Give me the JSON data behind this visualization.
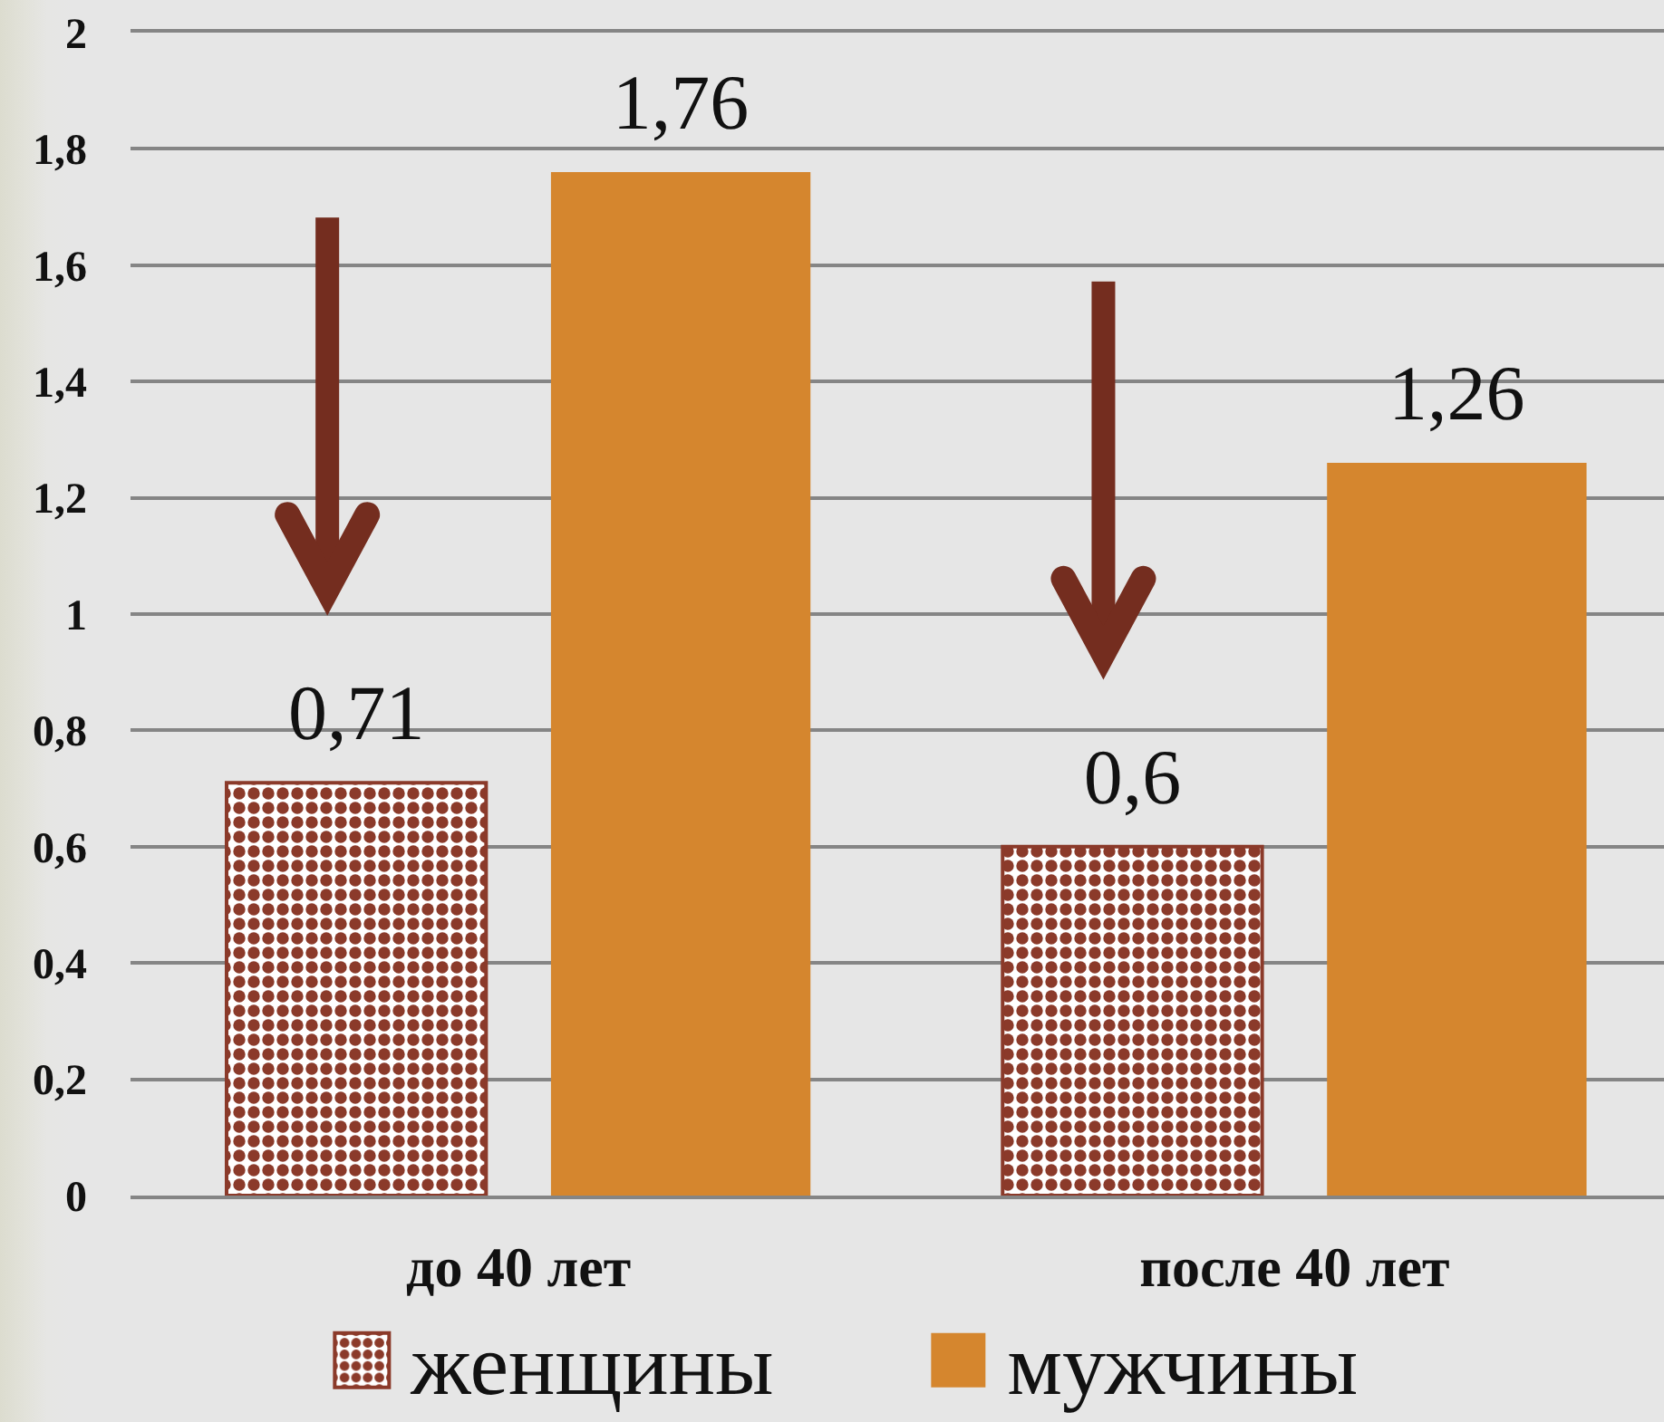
{
  "chart_data": {
    "type": "bar",
    "categories": [
      "до 40 лет",
      "после 40 лет"
    ],
    "series": [
      {
        "name": "женщины",
        "color": "#8b3a2a",
        "values": [
          0.71,
          0.6
        ],
        "value_labels": [
          "0,71",
          "0,6"
        ]
      },
      {
        "name": "мужчины",
        "color": "#d5862e",
        "values": [
          1.76,
          1.26
        ],
        "value_labels": [
          "1,76",
          "1,26"
        ]
      }
    ],
    "ylim": [
      0,
      2
    ],
    "yticks": [
      0,
      {
        "value": 0.2,
        "label": "0,2"
      },
      {
        "value": 0.4,
        "label": "0,4"
      },
      {
        "value": 0.6,
        "label": "0,6"
      },
      {
        "value": 0.8,
        "label": "0,8"
      },
      1,
      {
        "value": 1.2,
        "label": "1,2"
      },
      {
        "value": 1.4,
        "label": "1,4"
      },
      {
        "value": 1.6,
        "label": "1,6"
      },
      {
        "value": 1.8,
        "label": "1,8"
      },
      2
    ],
    "grid": "y",
    "legend": "bottom"
  }
}
